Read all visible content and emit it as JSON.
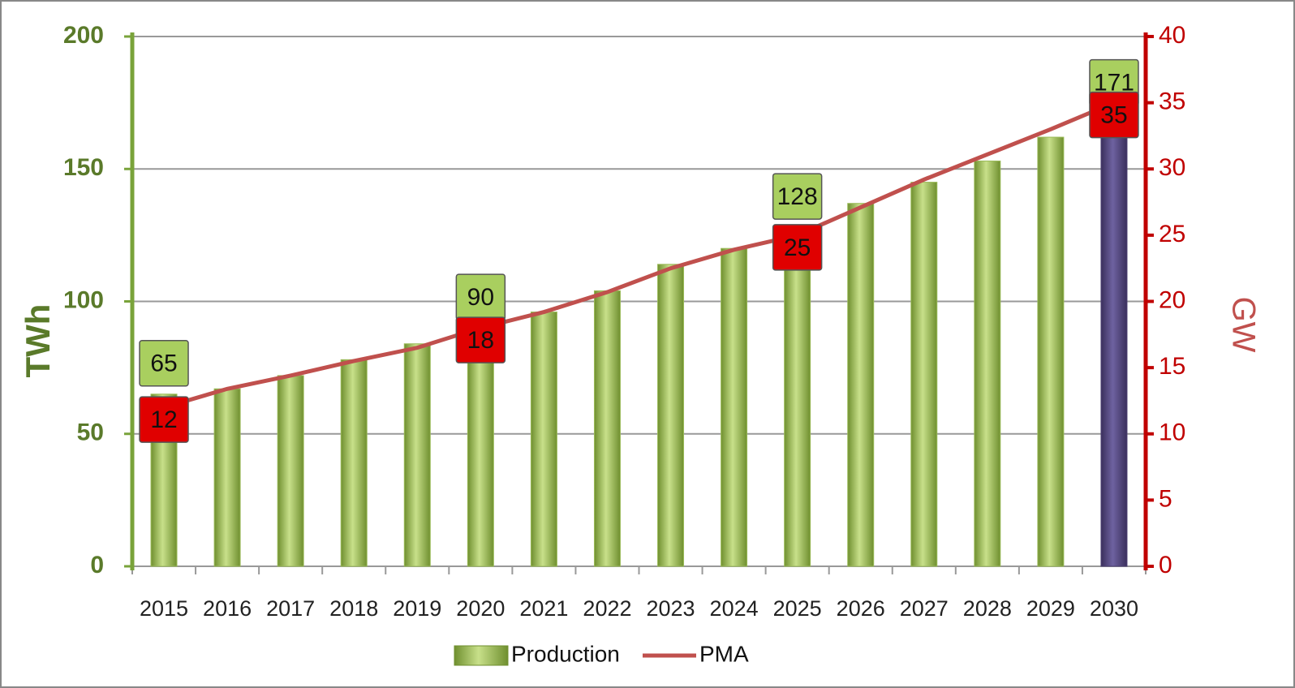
{
  "chart_data": {
    "type": "bar",
    "categories": [
      "2015",
      "2016",
      "2017",
      "2018",
      "2019",
      "2020",
      "2021",
      "2022",
      "2023",
      "2024",
      "2025",
      "2026",
      "2027",
      "2028",
      "2029",
      "2030"
    ],
    "series": [
      {
        "name": "Production",
        "type": "bar",
        "color": "#9bbb59",
        "colors": [
          "#9bbb59",
          "#9bbb59",
          "#9bbb59",
          "#9bbb59",
          "#9bbb59",
          "#9bbb59",
          "#9bbb59",
          "#9bbb59",
          "#9bbb59",
          "#9bbb59",
          "#9bbb59",
          "#9bbb59",
          "#9bbb59",
          "#9bbb59",
          "#9bbb59",
          "#4b3f72"
        ],
        "values": [
          65,
          67,
          72,
          78,
          84,
          90,
          96,
          104,
          114,
          120,
          128,
          137,
          145,
          153,
          162,
          171
        ]
      },
      {
        "name": "PMA",
        "type": "line",
        "axis": "y2",
        "color": "#c0504d",
        "values": [
          12,
          13.4,
          14.4,
          15.5,
          16.5,
          18,
          19.2,
          20.7,
          22.5,
          23.9,
          25,
          27.1,
          29.2,
          31.1,
          33,
          35
        ]
      }
    ],
    "ylabel": "TWh",
    "y2label": "GW",
    "ylim": [
      0,
      200
    ],
    "yticks": [
      0,
      50,
      100,
      150,
      200
    ],
    "y2lim": [
      0,
      40
    ],
    "y2ticks": [
      0,
      5,
      10,
      15,
      20,
      25,
      30,
      35,
      40
    ],
    "grid": true,
    "legend": "bottom"
  }
}
